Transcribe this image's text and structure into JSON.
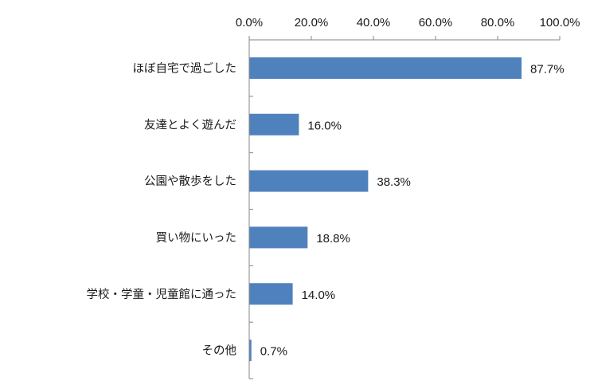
{
  "chart_data": {
    "type": "bar",
    "orientation": "horizontal",
    "categories": [
      "ほぼ自宅で過ごした",
      "友達とよく遊んだ",
      "公園や散歩をした",
      "買い物にいった",
      "学校・学童・児童館に通った",
      "その他"
    ],
    "values": [
      87.7,
      16.0,
      38.3,
      18.8,
      14.0,
      0.7
    ],
    "value_labels": [
      "87.7%",
      "16.0%",
      "38.3%",
      "18.8%",
      "14.0%",
      "0.7%"
    ],
    "x_ticks": [
      0,
      20,
      40,
      60,
      80,
      100
    ],
    "x_tick_labels": [
      "0.0%",
      "20.0%",
      "40.0%",
      "60.0%",
      "80.0%",
      "100.0%"
    ],
    "xlim": [
      0,
      100
    ],
    "x_axis_position": "top",
    "grid": false,
    "bar_color": "#4F81BD",
    "axis_color": "#868686"
  }
}
